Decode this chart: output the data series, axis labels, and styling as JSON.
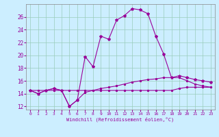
{
  "xlabel": "Windchill (Refroidissement éolien,°C)",
  "xlim": [
    -0.5,
    23.5
  ],
  "ylim": [
    11.5,
    28.0
  ],
  "yticks": [
    12,
    14,
    16,
    18,
    20,
    22,
    24,
    26
  ],
  "xticks": [
    0,
    1,
    2,
    3,
    4,
    5,
    6,
    7,
    8,
    9,
    10,
    11,
    12,
    13,
    14,
    15,
    16,
    17,
    18,
    19,
    20,
    21,
    22,
    23
  ],
  "bg_color": "#cceeff",
  "line_color": "#990099",
  "grid_color": "#99ccbb",
  "hours": [
    0,
    1,
    2,
    3,
    4,
    5,
    6,
    7,
    8,
    9,
    10,
    11,
    12,
    13,
    14,
    15,
    16,
    17,
    18,
    19,
    20,
    21,
    22,
    23
  ],
  "temp": [
    14.5,
    14.0,
    14.5,
    14.8,
    14.5,
    12.0,
    13.0,
    19.8,
    18.2,
    23.0,
    22.5,
    25.5,
    26.2,
    27.3,
    27.1,
    26.5,
    23.0,
    20.2,
    16.5,
    16.8,
    16.5,
    16.2,
    16.0,
    15.8
  ],
  "windchill": [
    14.5,
    14.0,
    14.5,
    14.8,
    14.5,
    12.0,
    13.0,
    14.2,
    14.5,
    14.8,
    15.0,
    15.2,
    15.5,
    15.8,
    16.0,
    16.2,
    16.3,
    16.5,
    16.5,
    16.5,
    16.0,
    15.5,
    15.2,
    15.0
  ],
  "flat": [
    14.5,
    14.5,
    14.5,
    14.5,
    14.5,
    14.5,
    14.5,
    14.5,
    14.5,
    14.5,
    14.5,
    14.5,
    14.5,
    14.5,
    14.5,
    14.5,
    14.5,
    14.5,
    14.5,
    14.8,
    15.0,
    15.0,
    15.0,
    15.0
  ]
}
